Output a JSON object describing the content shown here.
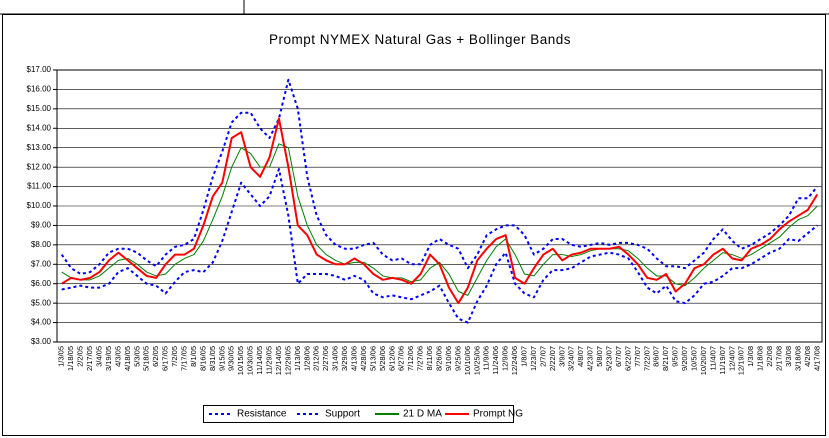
{
  "chart_data": {
    "type": "line",
    "title": "Prompt NYMEX Natural Gas + Bollinger Bands",
    "categories": [
      "1/3/05",
      "1/18/05",
      "2/2/05",
      "2/17/05",
      "3/4/05",
      "3/19/05",
      "4/3/05",
      "4/18/05",
      "5/3/05",
      "5/18/05",
      "6/2/05",
      "6/17/05",
      "7/2/05",
      "7/17/05",
      "8/1/05",
      "8/16/05",
      "8/31/05",
      "9/15/05",
      "9/30/05",
      "10/15/05",
      "10/30/05",
      "11/14/05",
      "11/29/05",
      "12/14/05",
      "12/29/05",
      "1/13/06",
      "1/28/06",
      "2/12/06",
      "2/27/06",
      "3/14/06",
      "3/29/06",
      "4/13/06",
      "4/28/06",
      "5/13/06",
      "5/28/06",
      "6/12/06",
      "6/27/06",
      "7/12/06",
      "7/27/06",
      "8/11/06",
      "8/26/06",
      "9/10/06",
      "9/25/06",
      "10/10/06",
      "10/25/06",
      "11/9/06",
      "11/24/06",
      "12/9/06",
      "12/24/06",
      "1/8/07",
      "1/23/07",
      "2/7/07",
      "2/22/07",
      "3/9/07",
      "3/24/07",
      "4/8/07",
      "4/23/07",
      "5/8/07",
      "5/23/07",
      "6/7/07",
      "6/22/07",
      "7/7/07",
      "7/22/07",
      "8/6/07",
      "8/21/07",
      "9/5/07",
      "9/20/07",
      "10/5/07",
      "10/20/07",
      "11/4/07",
      "11/19/07",
      "12/4/07",
      "12/19/07",
      "1/3/08",
      "1/18/08",
      "2/2/08",
      "2/17/08",
      "3/3/08",
      "3/18/08",
      "4/2/08",
      "4/17/08"
    ],
    "series": [
      {
        "name": "Resistance",
        "color": "#0000ff",
        "dashed": true,
        "values": [
          7.5,
          6.8,
          6.5,
          6.6,
          7.0,
          7.6,
          7.8,
          7.8,
          7.6,
          7.2,
          6.9,
          7.5,
          7.9,
          8.0,
          8.3,
          9.8,
          11.5,
          12.8,
          14.3,
          14.8,
          14.8,
          14.0,
          13.5,
          14.5,
          16.5,
          15.0,
          11.5,
          9.5,
          8.5,
          8.0,
          7.8,
          7.8,
          8.0,
          8.1,
          7.5,
          7.2,
          7.3,
          7.0,
          7.0,
          8.0,
          8.3,
          8.0,
          7.8,
          6.8,
          7.5,
          8.5,
          8.8,
          9.0,
          9.0,
          8.5,
          7.5,
          7.8,
          8.3,
          8.3,
          8.0,
          7.9,
          8.0,
          8.1,
          8.0,
          8.1,
          8.1,
          8.0,
          7.8,
          7.3,
          6.9,
          6.9,
          6.8,
          7.2,
          7.6,
          8.3,
          8.8,
          8.2,
          7.8,
          8.0,
          8.3,
          8.6,
          9.0,
          9.5,
          10.4,
          10.4,
          11.0
        ]
      },
      {
        "name": "Support",
        "color": "#0000ff",
        "dashed": true,
        "values": [
          5.7,
          5.8,
          5.9,
          5.8,
          5.8,
          6.0,
          6.6,
          6.8,
          6.4,
          6.0,
          5.9,
          5.5,
          6.1,
          6.6,
          6.7,
          6.6,
          7.1,
          8.2,
          9.7,
          11.2,
          10.6,
          10.0,
          10.5,
          11.9,
          9.5,
          6.0,
          6.5,
          6.5,
          6.5,
          6.4,
          6.2,
          6.4,
          6.2,
          5.5,
          5.3,
          5.4,
          5.3,
          5.2,
          5.4,
          5.6,
          5.9,
          5.0,
          4.2,
          4.0,
          5.1,
          5.9,
          7.0,
          7.6,
          6.0,
          5.5,
          5.3,
          6.2,
          6.7,
          6.7,
          6.8,
          7.1,
          7.4,
          7.5,
          7.6,
          7.5,
          7.3,
          6.6,
          5.8,
          5.5,
          5.9,
          5.1,
          5.0,
          5.4,
          6.0,
          6.1,
          6.4,
          6.8,
          6.8,
          7.0,
          7.3,
          7.6,
          7.8,
          8.3,
          8.2,
          8.6,
          9.0
        ]
      },
      {
        "name": "21 D MA",
        "color": "#008000",
        "dashed": false,
        "values": [
          6.6,
          6.3,
          6.2,
          6.2,
          6.4,
          6.8,
          7.2,
          7.3,
          7.0,
          6.6,
          6.4,
          6.5,
          7.0,
          7.3,
          7.5,
          8.2,
          9.3,
          10.5,
          12.0,
          13.0,
          12.7,
          12.0,
          12.0,
          13.2,
          13.0,
          10.5,
          9.0,
          8.0,
          7.5,
          7.2,
          7.0,
          7.1,
          7.1,
          6.8,
          6.4,
          6.3,
          6.3,
          6.1,
          6.2,
          6.8,
          7.1,
          6.5,
          5.6,
          5.4,
          6.3,
          7.2,
          7.9,
          8.3,
          7.5,
          6.5,
          6.4,
          7.0,
          7.5,
          7.5,
          7.4,
          7.5,
          7.7,
          7.8,
          7.8,
          7.8,
          7.7,
          7.3,
          6.8,
          6.4,
          6.4,
          6.0,
          5.9,
          6.3,
          6.8,
          7.2,
          7.6,
          7.5,
          7.3,
          7.5,
          7.8,
          8.1,
          8.4,
          8.9,
          9.3,
          9.5,
          10.0
        ]
      },
      {
        "name": "Prompt NG",
        "color": "#ff0000",
        "dashed": false,
        "values": [
          6.0,
          6.3,
          6.2,
          6.3,
          6.6,
          7.2,
          7.6,
          7.2,
          6.8,
          6.4,
          6.3,
          7.0,
          7.5,
          7.5,
          7.8,
          9.0,
          10.5,
          11.2,
          13.5,
          13.8,
          12.0,
          11.5,
          12.5,
          14.5,
          12.0,
          9.0,
          8.5,
          7.5,
          7.2,
          7.0,
          7.0,
          7.3,
          7.0,
          6.5,
          6.2,
          6.3,
          6.2,
          6.0,
          6.5,
          7.5,
          7.0,
          5.8,
          5.0,
          5.8,
          7.2,
          7.8,
          8.3,
          8.5,
          6.3,
          6.0,
          6.8,
          7.5,
          7.8,
          7.2,
          7.5,
          7.6,
          7.8,
          7.8,
          7.8,
          7.9,
          7.5,
          7.0,
          6.3,
          6.2,
          6.5,
          5.6,
          6.0,
          6.8,
          7.0,
          7.5,
          7.8,
          7.3,
          7.2,
          7.8,
          8.0,
          8.3,
          8.8,
          9.2,
          9.5,
          9.8,
          10.6
        ]
      }
    ],
    "ylim": [
      3,
      17
    ],
    "yticks": [
      {
        "value": 3,
        "label": "$3.00"
      },
      {
        "value": 4,
        "label": "$4.00"
      },
      {
        "value": 5,
        "label": "$5.00"
      },
      {
        "value": 6,
        "label": "$6.00"
      },
      {
        "value": 7,
        "label": "$7.00"
      },
      {
        "value": 8,
        "label": "$8.00"
      },
      {
        "value": 9,
        "label": "$9.00"
      },
      {
        "value": 10,
        "label": "$10.00"
      },
      {
        "value": 11,
        "label": "$11.00"
      },
      {
        "value": 12,
        "label": "$12.00"
      },
      {
        "value": 13,
        "label": "$13.00"
      },
      {
        "value": 14,
        "label": "$14.00"
      },
      {
        "value": 15,
        "label": "$15.00"
      },
      {
        "value": 16,
        "label": "$16.00"
      },
      {
        "value": 17,
        "label": "$17.00"
      }
    ],
    "grid": true,
    "legend": "bottom"
  }
}
